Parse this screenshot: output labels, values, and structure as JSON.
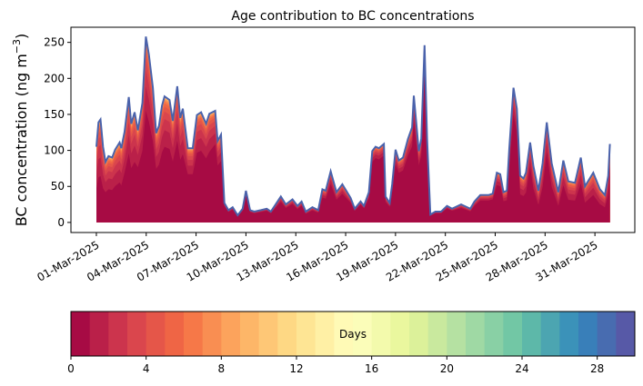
{
  "chart_data": {
    "type": "area",
    "title": "Age contribution to BC concentrations",
    "ylabel_main": "BC concentration (ng m",
    "ylabel_sup": "−3",
    "ylabel_end": ")",
    "xlabel": "",
    "x_unit": "days since 01-Mar-2025",
    "xlim": [
      -1.53,
      32.4
    ],
    "ylim": [
      -14,
      271
    ],
    "yticks": [
      0,
      50,
      100,
      150,
      200,
      250
    ],
    "xticks": [
      0,
      3,
      6,
      9,
      12,
      15,
      18,
      21,
      24,
      27,
      30
    ],
    "xtick_labels": [
      "01-Mar-2025",
      "04-Mar-2025",
      "07-Mar-2025",
      "10-Mar-2025",
      "13-Mar-2025",
      "16-Mar-2025",
      "19-Mar-2025",
      "22-Mar-2025",
      "25-Mar-2025",
      "28-Mar-2025",
      "31-Mar-2025"
    ],
    "total_line_color": "#4a62ab",
    "x": [
      0,
      0.13,
      0.25,
      0.4,
      0.55,
      0.73,
      0.95,
      1.13,
      1.4,
      1.5,
      1.7,
      1.95,
      2.1,
      2.3,
      2.5,
      2.77,
      2.98,
      3.16,
      3.4,
      3.6,
      3.77,
      3.95,
      4.1,
      4.4,
      4.6,
      4.87,
      5.05,
      5.2,
      5.5,
      5.8,
      6.05,
      6.3,
      6.6,
      6.8,
      7.15,
      7.3,
      7.5,
      7.7,
      7.95,
      8.2,
      8.5,
      8.8,
      9.0,
      9.25,
      9.5,
      9.9,
      10.25,
      10.5,
      11.1,
      11.4,
      11.8,
      12.1,
      12.35,
      12.6,
      13.0,
      13.35,
      13.6,
      13.8,
      14.1,
      14.45,
      14.8,
      15.3,
      15.55,
      15.9,
      16.1,
      16.4,
      16.6,
      16.8,
      17.0,
      17.3,
      17.4,
      17.65,
      17.8,
      18.0,
      18.2,
      18.45,
      18.75,
      19.0,
      19.1,
      19.4,
      19.55,
      19.75,
      19.9,
      20.1,
      20.4,
      20.75,
      21.1,
      21.4,
      21.95,
      22.5,
      22.75,
      23.1,
      23.6,
      23.85,
      24.1,
      24.3,
      24.5,
      24.7,
      24.85,
      25.1,
      25.3,
      25.5,
      25.7,
      25.85,
      26.1,
      26.3,
      26.6,
      26.85,
      27.1,
      27.4,
      27.8,
      28.1,
      28.4,
      28.8,
      29.15,
      29.4,
      29.9,
      30.3,
      30.6,
      30.8,
      30.9
    ],
    "total": [
      105,
      139,
      143,
      105,
      84,
      92,
      90,
      101,
      111,
      103,
      126,
      174,
      137,
      153,
      128,
      166,
      258,
      233,
      187,
      124,
      134,
      162,
      175,
      170,
      141,
      189,
      145,
      158,
      103,
      103,
      149,
      153,
      137,
      151,
      155,
      113,
      122,
      27,
      17,
      21,
      10,
      19,
      44,
      17,
      15,
      17,
      19,
      15,
      36,
      25,
      32,
      23,
      29,
      15,
      21,
      17,
      46,
      44,
      71,
      42,
      53,
      34,
      19,
      29,
      23,
      42,
      99,
      105,
      103,
      109,
      36,
      27,
      53,
      101,
      86,
      90,
      116,
      132,
      176,
      99,
      116,
      246,
      116,
      11,
      15,
      15,
      23,
      19,
      25,
      19,
      29,
      38,
      38,
      40,
      69,
      67,
      42,
      44,
      103,
      187,
      158,
      65,
      61,
      69,
      111,
      78,
      44,
      82,
      139,
      82,
      42,
      86,
      57,
      55,
      90,
      50,
      69,
      46,
      38,
      65,
      109
    ],
    "fresh_share_0_1_day": [
      0.45,
      0.45,
      0.45,
      0.45,
      0.5,
      0.5,
      0.5,
      0.5,
      0.5,
      0.5,
      0.55,
      0.55,
      0.55,
      0.55,
      0.6,
      0.6,
      0.6,
      0.6,
      0.6,
      0.6,
      0.6,
      0.6,
      0.6,
      0.6,
      0.6,
      0.6,
      0.6,
      0.6,
      0.65,
      0.65,
      0.65,
      0.65,
      0.65,
      0.65,
      0.7,
      0.7,
      0.7,
      0.85,
      0.85,
      0.85,
      0.85,
      0.85,
      0.85,
      0.85,
      0.85,
      0.85,
      0.85,
      0.85,
      0.8,
      0.8,
      0.8,
      0.8,
      0.8,
      0.8,
      0.8,
      0.8,
      0.75,
      0.75,
      0.75,
      0.75,
      0.75,
      0.8,
      0.85,
      0.85,
      0.85,
      0.8,
      0.85,
      0.85,
      0.85,
      0.85,
      0.8,
      0.8,
      0.8,
      0.8,
      0.8,
      0.8,
      0.8,
      0.8,
      0.8,
      0.8,
      0.8,
      0.85,
      0.8,
      0.85,
      0.85,
      0.85,
      0.85,
      0.85,
      0.8,
      0.8,
      0.8,
      0.8,
      0.8,
      0.8,
      0.75,
      0.75,
      0.7,
      0.7,
      0.75,
      0.8,
      0.8,
      0.6,
      0.6,
      0.6,
      0.7,
      0.6,
      0.55,
      0.6,
      0.7,
      0.6,
      0.55,
      0.6,
      0.55,
      0.55,
      0.6,
      0.55,
      0.55,
      0.55,
      0.55,
      0.6,
      0.7
    ]
  },
  "colorbar": {
    "label": "Days",
    "range": [
      0,
      30
    ],
    "n_bins": 30,
    "ticks": [
      0,
      4,
      8,
      12,
      16,
      20,
      24,
      28
    ],
    "tick_labels": [
      "0",
      "4",
      "8",
      "12",
      "16",
      "20",
      "24",
      "28"
    ],
    "colormap": [
      "#9e0142",
      "#d53e4f",
      "#f46d43",
      "#fdae61",
      "#fee08b",
      "#ffffbf",
      "#e6f598",
      "#abdda4",
      "#66c2a5",
      "#3288bd",
      "#5e4fa2"
    ]
  }
}
